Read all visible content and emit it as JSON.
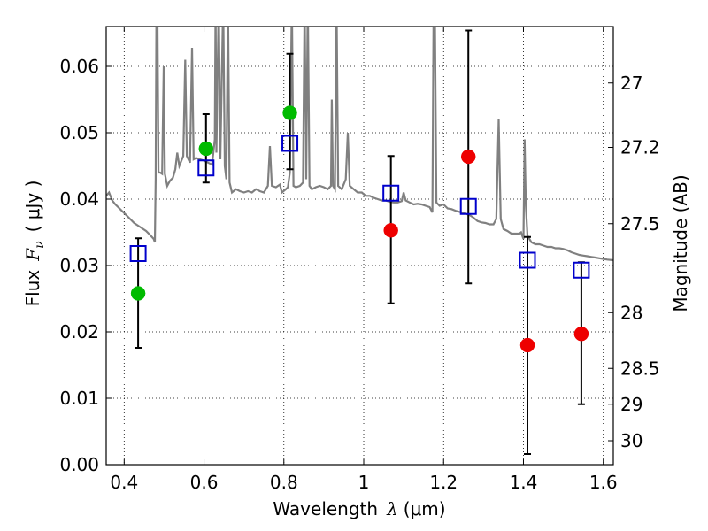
{
  "chart_data": {
    "type": "scatter",
    "xlabel": "Wavelength",
    "xlabel_symbol": "λ",
    "xlabel_unit": "(μm)",
    "ylabel": "Flux",
    "ylabel_symbol": "F",
    "ylabel_subscript": "ν",
    "ylabel_unit": "( μJy )",
    "y2label": "Magnitude (AB)",
    "xlim": [
      0.355,
      1.625
    ],
    "ylim": [
      0.0,
      0.066
    ],
    "grid": true,
    "grid_style": "dotted",
    "x_ticks": [
      0.4,
      0.6,
      0.8,
      1.0,
      1.2,
      1.4,
      1.6
    ],
    "x_tick_labels": [
      "0.4",
      "0.6",
      "0.8",
      "1",
      "1.2",
      "1.4",
      "1.6"
    ],
    "y_ticks": [
      0.0,
      0.01,
      0.02,
      0.03,
      0.04,
      0.05,
      0.06
    ],
    "y_tick_labels": [
      "0.00",
      "0.01",
      "0.02",
      "0.03",
      "0.04",
      "0.05",
      "0.06"
    ],
    "y2_ticks": [
      {
        "label": "27",
        "flux": 0.0575
      },
      {
        "label": "27.2",
        "flux": 0.0478
      },
      {
        "label": "27.5",
        "flux": 0.0363
      },
      {
        "label": "28",
        "flux": 0.0229
      },
      {
        "label": "28.5",
        "flux": 0.0145
      },
      {
        "label": "29",
        "flux": 0.0091
      },
      {
        "label": "30",
        "flux": 0.0036
      }
    ],
    "colors": {
      "model": "#808080",
      "measured_green": "#00bb00",
      "measured_red": "#ee0000",
      "model_box": "#0000cc",
      "errorbar": "#000000"
    },
    "model_spectrum": [
      [
        0.355,
        0.0405
      ],
      [
        0.362,
        0.041
      ],
      [
        0.37,
        0.0398
      ],
      [
        0.378,
        0.0392
      ],
      [
        0.385,
        0.0388
      ],
      [
        0.395,
        0.0382
      ],
      [
        0.405,
        0.0376
      ],
      [
        0.415,
        0.037
      ],
      [
        0.425,
        0.0364
      ],
      [
        0.435,
        0.036
      ],
      [
        0.445,
        0.0356
      ],
      [
        0.455,
        0.0352
      ],
      [
        0.465,
        0.0346
      ],
      [
        0.474,
        0.034
      ],
      [
        0.477,
        0.0335
      ],
      [
        0.479,
        0.043
      ],
      [
        0.481,
        0.07
      ],
      [
        0.483,
        0.07
      ],
      [
        0.486,
        0.044
      ],
      [
        0.49,
        0.044
      ],
      [
        0.495,
        0.0438
      ],
      [
        0.499,
        0.06
      ],
      [
        0.502,
        0.0438
      ],
      [
        0.508,
        0.042
      ],
      [
        0.515,
        0.0428
      ],
      [
        0.522,
        0.0432
      ],
      [
        0.528,
        0.0445
      ],
      [
        0.533,
        0.047
      ],
      [
        0.538,
        0.045
      ],
      [
        0.548,
        0.0465
      ],
      [
        0.553,
        0.061
      ],
      [
        0.557,
        0.0465
      ],
      [
        0.565,
        0.0455
      ],
      [
        0.57,
        0.0628
      ],
      [
        0.574,
        0.046
      ],
      [
        0.58,
        0.0462
      ],
      [
        0.59,
        0.046
      ],
      [
        0.6,
        0.0458
      ],
      [
        0.61,
        0.0455
      ],
      [
        0.62,
        0.0452
      ],
      [
        0.627,
        0.049
      ],
      [
        0.629,
        0.07
      ],
      [
        0.631,
        0.047
      ],
      [
        0.637,
        0.07
      ],
      [
        0.641,
        0.046
      ],
      [
        0.648,
        0.07
      ],
      [
        0.652,
        0.045
      ],
      [
        0.656,
        0.043
      ],
      [
        0.66,
        0.07
      ],
      [
        0.664,
        0.0425
      ],
      [
        0.67,
        0.041
      ],
      [
        0.68,
        0.0415
      ],
      [
        0.69,
        0.0412
      ],
      [
        0.7,
        0.041
      ],
      [
        0.71,
        0.0412
      ],
      [
        0.72,
        0.041
      ],
      [
        0.73,
        0.0415
      ],
      [
        0.74,
        0.0412
      ],
      [
        0.75,
        0.041
      ],
      [
        0.76,
        0.042
      ],
      [
        0.765,
        0.048
      ],
      [
        0.77,
        0.042
      ],
      [
        0.78,
        0.0418
      ],
      [
        0.79,
        0.0422
      ],
      [
        0.795,
        0.041
      ],
      [
        0.805,
        0.0415
      ],
      [
        0.81,
        0.0418
      ],
      [
        0.815,
        0.044
      ],
      [
        0.82,
        0.07
      ],
      [
        0.824,
        0.042
      ],
      [
        0.83,
        0.0418
      ],
      [
        0.84,
        0.042
      ],
      [
        0.848,
        0.0425
      ],
      [
        0.852,
        0.07
      ],
      [
        0.856,
        0.043
      ],
      [
        0.86,
        0.07
      ],
      [
        0.864,
        0.042
      ],
      [
        0.87,
        0.0415
      ],
      [
        0.88,
        0.0418
      ],
      [
        0.89,
        0.042
      ],
      [
        0.9,
        0.0418
      ],
      [
        0.91,
        0.0415
      ],
      [
        0.918,
        0.042
      ],
      [
        0.92,
        0.055
      ],
      [
        0.923,
        0.042
      ],
      [
        0.928,
        0.0415
      ],
      [
        0.932,
        0.07
      ],
      [
        0.936,
        0.042
      ],
      [
        0.945,
        0.0415
      ],
      [
        0.955,
        0.043
      ],
      [
        0.96,
        0.05
      ],
      [
        0.965,
        0.042
      ],
      [
        0.975,
        0.0415
      ],
      [
        0.985,
        0.041
      ],
      [
        0.995,
        0.041
      ],
      [
        1.005,
        0.0405
      ],
      [
        1.015,
        0.0405
      ],
      [
        1.025,
        0.0402
      ],
      [
        1.035,
        0.04
      ],
      [
        1.045,
        0.0398
      ],
      [
        1.055,
        0.0398
      ],
      [
        1.065,
        0.0396
      ],
      [
        1.075,
        0.0395
      ],
      [
        1.085,
        0.0395
      ],
      [
        1.095,
        0.0397
      ],
      [
        1.1,
        0.041
      ],
      [
        1.105,
        0.0398
      ],
      [
        1.115,
        0.0395
      ],
      [
        1.125,
        0.0392
      ],
      [
        1.135,
        0.0393
      ],
      [
        1.145,
        0.0392
      ],
      [
        1.155,
        0.039
      ],
      [
        1.165,
        0.0388
      ],
      [
        1.172,
        0.038
      ],
      [
        1.175,
        0.07
      ],
      [
        1.178,
        0.07
      ],
      [
        1.182,
        0.0395
      ],
      [
        1.19,
        0.039
      ],
      [
        1.2,
        0.0392
      ],
      [
        1.21,
        0.0386
      ],
      [
        1.22,
        0.0385
      ],
      [
        1.232,
        0.0382
      ],
      [
        1.245,
        0.038
      ],
      [
        1.255,
        0.0378
      ],
      [
        1.265,
        0.0376
      ],
      [
        1.275,
        0.0372
      ],
      [
        1.285,
        0.0367
      ],
      [
        1.295,
        0.0365
      ],
      [
        1.305,
        0.0364
      ],
      [
        1.315,
        0.0362
      ],
      [
        1.325,
        0.0362
      ],
      [
        1.332,
        0.037
      ],
      [
        1.338,
        0.052
      ],
      [
        1.343,
        0.037
      ],
      [
        1.35,
        0.0355
      ],
      [
        1.36,
        0.0352
      ],
      [
        1.37,
        0.0348
      ],
      [
        1.38,
        0.0348
      ],
      [
        1.39,
        0.0348
      ],
      [
        1.394,
        0.035
      ],
      [
        1.397,
        0.0345
      ],
      [
        1.4,
        0.034
      ],
      [
        1.403,
        0.049
      ],
      [
        1.406,
        0.039
      ],
      [
        1.41,
        0.0345
      ],
      [
        1.42,
        0.0335
      ],
      [
        1.43,
        0.0332
      ],
      [
        1.44,
        0.0332
      ],
      [
        1.45,
        0.033
      ],
      [
        1.46,
        0.0328
      ],
      [
        1.47,
        0.0328
      ],
      [
        1.48,
        0.0326
      ],
      [
        1.49,
        0.0326
      ],
      [
        1.5,
        0.0325
      ],
      [
        1.51,
        0.0323
      ],
      [
        1.52,
        0.032
      ],
      [
        1.53,
        0.0318
      ],
      [
        1.54,
        0.0316
      ],
      [
        1.55,
        0.0315
      ],
      [
        1.56,
        0.0314
      ],
      [
        1.57,
        0.0313
      ],
      [
        1.58,
        0.0312
      ],
      [
        1.59,
        0.0311
      ],
      [
        1.6,
        0.031
      ],
      [
        1.61,
        0.0309
      ],
      [
        1.625,
        0.0308
      ]
    ],
    "model_boxes": [
      {
        "x": 0.435,
        "y": 0.0318
      },
      {
        "x": 0.605,
        "y": 0.0447
      },
      {
        "x": 0.815,
        "y": 0.0484
      },
      {
        "x": 1.068,
        "y": 0.0409
      },
      {
        "x": 1.262,
        "y": 0.0389
      },
      {
        "x": 1.41,
        "y": 0.0308
      },
      {
        "x": 1.545,
        "y": 0.0293
      }
    ],
    "measured": [
      {
        "x": 0.435,
        "y": 0.0258,
        "err_low": 0.0176,
        "err_high": 0.0341,
        "color": "green"
      },
      {
        "x": 0.605,
        "y": 0.0476,
        "err_low": 0.0425,
        "err_high": 0.0528,
        "color": "green"
      },
      {
        "x": 0.815,
        "y": 0.053,
        "err_low": 0.0445,
        "err_high": 0.0619,
        "color": "green"
      },
      {
        "x": 1.068,
        "y": 0.0353,
        "err_low": 0.0243,
        "err_high": 0.0465,
        "color": "red"
      },
      {
        "x": 1.262,
        "y": 0.0464,
        "err_low": 0.0273,
        "err_high": 0.0654,
        "color": "red"
      },
      {
        "x": 1.41,
        "y": 0.018,
        "err_low": 0.0016,
        "err_high": 0.0343,
        "color": "red"
      },
      {
        "x": 1.545,
        "y": 0.0197,
        "err_low": 0.0091,
        "err_high": 0.0305,
        "color": "red"
      }
    ]
  }
}
